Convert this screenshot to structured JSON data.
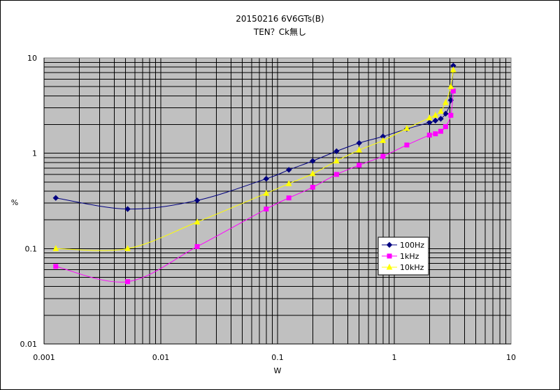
{
  "chart_data": {
    "type": "line",
    "title": "20150216 6V6GTs(B)",
    "subtitle": "TEN？Ck無し",
    "xlabel": "W",
    "ylabel": "%",
    "xscale": "log",
    "yscale": "log",
    "xlim": [
      0.001,
      10
    ],
    "ylim": [
      0.01,
      10
    ],
    "x_ticks": [
      "0.001",
      "0.01",
      "0.1",
      "1",
      "10"
    ],
    "y_ticks": [
      "0.01",
      "0.1",
      "1",
      "10"
    ],
    "grid": true,
    "legend_position": "center-right",
    "plot_background": "#c0c0c0",
    "series": [
      {
        "name": "100Hz",
        "color": "#000080",
        "marker": "diamond",
        "x": [
          0.00126,
          0.0052,
          0.0205,
          0.08,
          0.125,
          0.2,
          0.32,
          0.5,
          0.8,
          1.28,
          2.0,
          2.25,
          2.5,
          2.75,
          3.05,
          3.2
        ],
        "y": [
          0.34,
          0.26,
          0.32,
          0.54,
          0.67,
          0.83,
          1.05,
          1.28,
          1.5,
          1.8,
          2.1,
          2.2,
          2.3,
          2.6,
          3.6,
          8.3
        ]
      },
      {
        "name": "1kHz",
        "color": "#ff00ff",
        "marker": "square",
        "x": [
          0.00126,
          0.0052,
          0.0205,
          0.08,
          0.125,
          0.2,
          0.32,
          0.5,
          0.8,
          1.28,
          2.0,
          2.25,
          2.5,
          2.75,
          3.05,
          3.2
        ],
        "y": [
          0.065,
          0.045,
          0.105,
          0.26,
          0.34,
          0.44,
          0.6,
          0.75,
          0.93,
          1.22,
          1.55,
          1.6,
          1.7,
          1.9,
          2.5,
          4.5
        ]
      },
      {
        "name": "10kHz",
        "color": "#ffff00",
        "marker": "triangle",
        "x": [
          0.00126,
          0.0052,
          0.0205,
          0.08,
          0.125,
          0.2,
          0.32,
          0.5,
          0.8,
          1.28,
          2.0,
          2.25,
          2.5,
          2.75,
          3.05,
          3.2
        ],
        "y": [
          0.1,
          0.1,
          0.19,
          0.38,
          0.48,
          0.61,
          0.83,
          1.08,
          1.36,
          1.82,
          2.35,
          2.5,
          2.75,
          3.4,
          5.0,
          7.5
        ]
      }
    ]
  }
}
